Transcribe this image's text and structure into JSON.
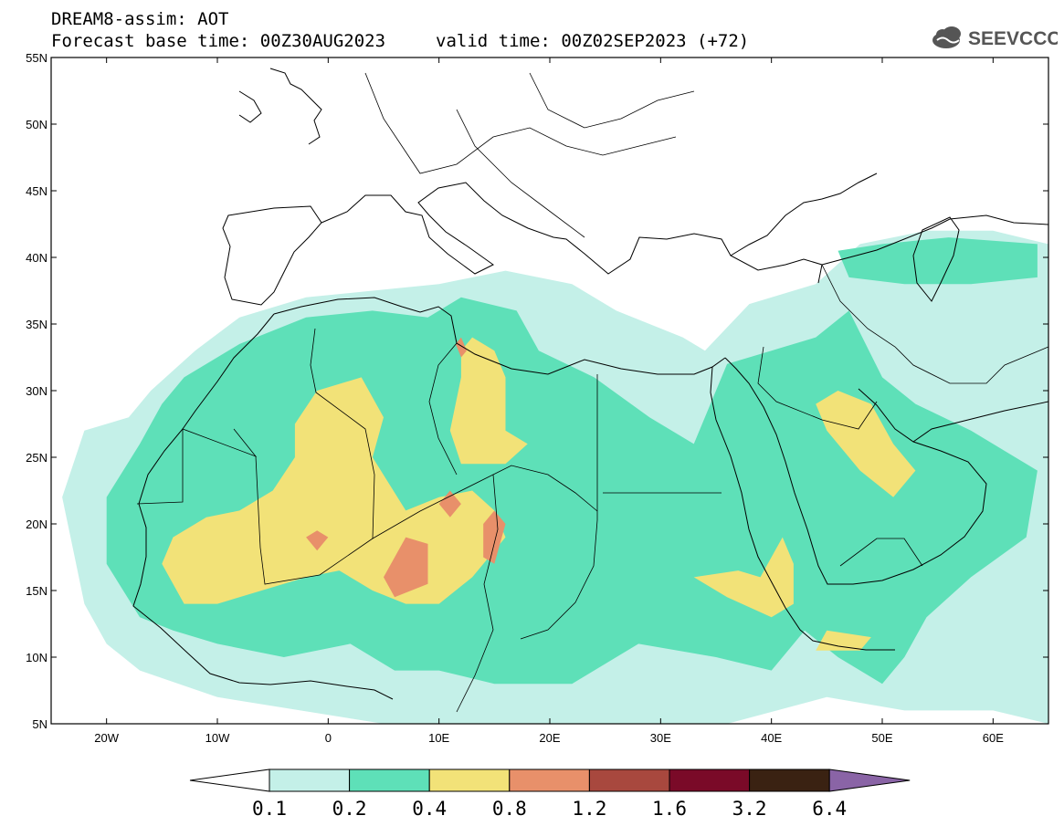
{
  "header": {
    "title": "DREAM8-assim: AOT",
    "base_time_label": "Forecast base time: 00Z30AUG2023",
    "valid_time_label": "valid time: 00Z02SEP2023 (+72)",
    "logo_text": "SEEVCCC",
    "logo_icon": "cloud-icon"
  },
  "map": {
    "projection": "lat-lon",
    "lon_range": [
      -25,
      65
    ],
    "lat_range": [
      5,
      55
    ],
    "lat_ticks": [
      {
        "value": 55,
        "label": "55N"
      },
      {
        "value": 50,
        "label": "50N"
      },
      {
        "value": 45,
        "label": "45N"
      },
      {
        "value": 40,
        "label": "40N"
      },
      {
        "value": 35,
        "label": "35N"
      },
      {
        "value": 30,
        "label": "30N"
      },
      {
        "value": 25,
        "label": "25N"
      },
      {
        "value": 20,
        "label": "20N"
      },
      {
        "value": 15,
        "label": "15N"
      },
      {
        "value": 10,
        "label": "10N"
      },
      {
        "value": 5,
        "label": "5N"
      }
    ],
    "lon_ticks": [
      {
        "value": -20,
        "label": "20W"
      },
      {
        "value": -10,
        "label": "10W"
      },
      {
        "value": 0,
        "label": "0"
      },
      {
        "value": 10,
        "label": "10E"
      },
      {
        "value": 20,
        "label": "20E"
      },
      {
        "value": 30,
        "label": "30E"
      },
      {
        "value": 40,
        "label": "40E"
      },
      {
        "value": 50,
        "label": "50E"
      },
      {
        "value": 60,
        "label": "60E"
      }
    ]
  },
  "colorbar": {
    "levels": [
      "0.1",
      "0.2",
      "0.4",
      "0.8",
      "1.2",
      "1.6",
      "3.2",
      "6.4"
    ],
    "colors": [
      "#c4f0e8",
      "#5ee0b8",
      "#f2e278",
      "#e8906a",
      "#a8483e",
      "#7a0a28",
      "#3a2212",
      "#8a64a6"
    ],
    "under_color": "#ffffff"
  },
  "fields": {
    "level_0.1": [
      [
        [
          -22,
          27
        ],
        [
          -18,
          28
        ],
        [
          -16,
          30
        ],
        [
          -12,
          33
        ],
        [
          -8,
          35.5
        ],
        [
          -2,
          37
        ],
        [
          4,
          37.5
        ],
        [
          10,
          38
        ],
        [
          16,
          39
        ],
        [
          22,
          38
        ],
        [
          26,
          36
        ],
        [
          32,
          34
        ],
        [
          34,
          33
        ],
        [
          38,
          36.5
        ],
        [
          44,
          38
        ],
        [
          48,
          41
        ],
        [
          54,
          42
        ],
        [
          60,
          42
        ],
        [
          65,
          41
        ],
        [
          65,
          5
        ],
        [
          60,
          6
        ],
        [
          52,
          6
        ],
        [
          45,
          7
        ],
        [
          36,
          5
        ],
        [
          20,
          5
        ],
        [
          5,
          5
        ],
        [
          -10,
          7
        ],
        [
          -17,
          9
        ],
        [
          -20,
          11
        ],
        [
          -22,
          14
        ],
        [
          -23,
          18
        ],
        [
          -24,
          22
        ]
      ]
    ],
    "level_0.2": [
      [
        [
          -15,
          29
        ],
        [
          -13,
          31
        ],
        [
          -8,
          33.5
        ],
        [
          -2,
          35.5
        ],
        [
          4,
          36
        ],
        [
          9,
          35.5
        ],
        [
          12,
          37
        ],
        [
          17,
          36
        ],
        [
          19,
          33
        ],
        [
          24,
          31
        ],
        [
          29,
          28
        ],
        [
          33,
          26
        ],
        [
          36,
          32
        ],
        [
          40,
          33
        ],
        [
          44,
          34
        ],
        [
          47,
          36
        ],
        [
          50,
          31
        ],
        [
          53,
          29
        ],
        [
          58,
          27
        ],
        [
          62,
          25
        ],
        [
          64,
          24
        ],
        [
          63,
          19
        ],
        [
          58,
          16
        ],
        [
          54,
          13
        ],
        [
          52,
          10
        ],
        [
          50,
          8
        ],
        [
          46,
          10
        ],
        [
          43,
          12
        ],
        [
          40,
          9
        ],
        [
          35,
          10
        ],
        [
          28,
          11
        ],
        [
          22,
          8
        ],
        [
          15,
          8
        ],
        [
          10,
          9
        ],
        [
          6,
          9
        ],
        [
          2,
          11
        ],
        [
          -4,
          10
        ],
        [
          -10,
          11
        ],
        [
          -14,
          12
        ],
        [
          -17,
          13
        ],
        [
          -20,
          17
        ],
        [
          -20,
          22
        ],
        [
          -17,
          26
        ]
      ],
      [
        [
          46,
          40.5
        ],
        [
          50,
          41
        ],
        [
          56,
          41.5
        ],
        [
          64,
          41
        ],
        [
          64,
          38.5
        ],
        [
          58,
          38
        ],
        [
          52,
          38
        ],
        [
          47,
          38.5
        ]
      ]
    ],
    "level_0.4": [
      [
        [
          -1,
          30
        ],
        [
          3,
          31
        ],
        [
          5,
          28
        ],
        [
          4,
          25
        ],
        [
          7,
          21
        ],
        [
          10,
          22
        ],
        [
          13,
          22.5
        ],
        [
          15,
          21
        ],
        [
          16,
          19
        ],
        [
          13,
          16
        ],
        [
          10,
          14
        ],
        [
          7,
          14
        ],
        [
          4,
          15
        ],
        [
          1,
          16.5
        ],
        [
          -2,
          16
        ],
        [
          -6,
          15
        ],
        [
          -10,
          14
        ],
        [
          -13,
          14
        ],
        [
          -15,
          17
        ],
        [
          -14,
          19
        ],
        [
          -11,
          20.5
        ],
        [
          -8,
          21
        ],
        [
          -5,
          22.5
        ],
        [
          -3,
          25
        ],
        [
          -3,
          27.5
        ]
      ],
      [
        [
          13,
          34
        ],
        [
          15,
          33
        ],
        [
          16,
          31
        ],
        [
          16,
          27
        ],
        [
          18,
          26
        ],
        [
          16,
          24.5
        ],
        [
          12,
          24.5
        ],
        [
          11,
          27
        ],
        [
          12,
          31
        ],
        [
          12,
          33
        ]
      ],
      [
        [
          46,
          30
        ],
        [
          49,
          29
        ],
        [
          51,
          26
        ],
        [
          53,
          24
        ],
        [
          51,
          22
        ],
        [
          48,
          24
        ],
        [
          45,
          27
        ],
        [
          44,
          29
        ]
      ],
      [
        [
          39,
          16
        ],
        [
          41,
          19
        ],
        [
          42,
          17
        ],
        [
          42,
          14
        ],
        [
          40,
          13
        ],
        [
          36,
          14.5
        ],
        [
          33,
          16
        ],
        [
          37,
          16.5
        ]
      ],
      [
        [
          45,
          12
        ],
        [
          49,
          11.5
        ],
        [
          48,
          10.5
        ],
        [
          44,
          10.5
        ]
      ]
    ],
    "level_0.8": [
      [
        [
          7,
          19
        ],
        [
          9,
          18.5
        ],
        [
          9,
          15.5
        ],
        [
          6,
          14.5
        ],
        [
          5,
          16
        ]
      ],
      [
        [
          15,
          21
        ],
        [
          16,
          20
        ],
        [
          15,
          17
        ],
        [
          14,
          17.5
        ],
        [
          14,
          20
        ]
      ],
      [
        [
          11,
          22.5
        ],
        [
          12,
          21.5
        ],
        [
          11,
          20.5
        ],
        [
          10,
          21.5
        ]
      ],
      [
        [
          12,
          34
        ],
        [
          12.5,
          33
        ],
        [
          12,
          32.5
        ],
        [
          11.5,
          33.5
        ]
      ],
      [
        [
          -1,
          19.5
        ],
        [
          0,
          19
        ],
        [
          -1,
          18
        ],
        [
          -2,
          19
        ]
      ]
    ]
  }
}
